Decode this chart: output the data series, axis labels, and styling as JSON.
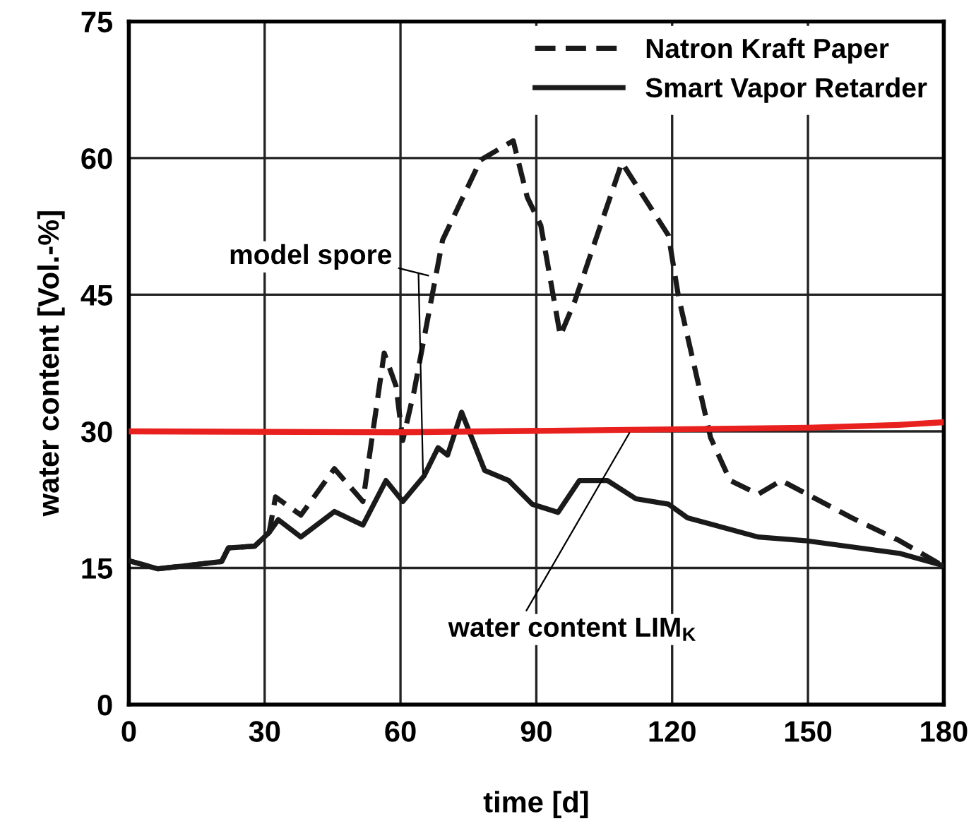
{
  "chart_data": {
    "type": "line",
    "xlabel": "time [d]",
    "ylabel": "water content [Vol.-%]",
    "xlim": [
      0,
      180
    ],
    "xticks": [
      0,
      30,
      60,
      90,
      120,
      150,
      180
    ],
    "ylim": [
      0,
      75
    ],
    "yticks": [
      0,
      15,
      30,
      45,
      60,
      75
    ],
    "grid": true,
    "legend": "top right",
    "series": [
      {
        "name": "Natron Kraft Paper",
        "color": "#1a1a1a",
        "line_style": "dashed",
        "x": [
          0,
          6.4,
          20.5,
          22,
          27.8,
          31,
          32.4,
          38,
          45.4,
          51.7,
          56.4,
          59,
          60.5,
          63,
          69.3,
          77.7,
          84.9,
          88,
          91,
          95.3,
          98.5,
          108.9,
          119.2,
          121.4,
          128.5,
          132.8,
          139,
          144.1,
          159.7,
          170.2,
          179.6
        ],
        "values": [
          15.8,
          14.9,
          15.7,
          17.2,
          17.4,
          18.9,
          22.8,
          20.8,
          25.9,
          22.3,
          38.6,
          35.0,
          29.0,
          34.4,
          51.0,
          59.8,
          61.9,
          55.7,
          52.6,
          40.5,
          44.3,
          59.5,
          51.5,
          44.8,
          29.3,
          24.6,
          23.1,
          24.6,
          20.5,
          18.0,
          15.3
        ]
      },
      {
        "name": "Smart Vapor Retarder",
        "color": "#1a1a1a",
        "line_style": "solid",
        "x": [
          0,
          6.4,
          20.5,
          22,
          27.8,
          31,
          33,
          38,
          45.4,
          51.7,
          56.8,
          60.5,
          65.2,
          68.3,
          70.4,
          73.5,
          78.6,
          83.9,
          89.1,
          94.8,
          99.5,
          105.7,
          112,
          119.2,
          123.4,
          139,
          149.4,
          170.2,
          179.6
        ],
        "values": [
          15.8,
          14.9,
          15.7,
          17.2,
          17.4,
          18.9,
          20.3,
          18.4,
          21.2,
          19.7,
          24.6,
          22.3,
          25.1,
          28.2,
          27.4,
          32.1,
          25.7,
          24.6,
          22.0,
          21.1,
          24.6,
          24.6,
          22.6,
          22.0,
          20.5,
          18.4,
          18.0,
          16.6,
          15.3
        ]
      },
      {
        "color": "#e8201e",
        "line_style": "solid",
        "x": [
          0,
          60,
          100,
          150,
          170,
          180
        ],
        "values": [
          30,
          29.9,
          30.1,
          30.4,
          30.7,
          31
        ]
      }
    ],
    "annotations": [
      {
        "text": "model spore",
        "x": 67,
        "y": 47
      },
      {
        "text": "water content LIM$_{K}$",
        "x": 111,
        "y": 30.2
      }
    ]
  }
}
